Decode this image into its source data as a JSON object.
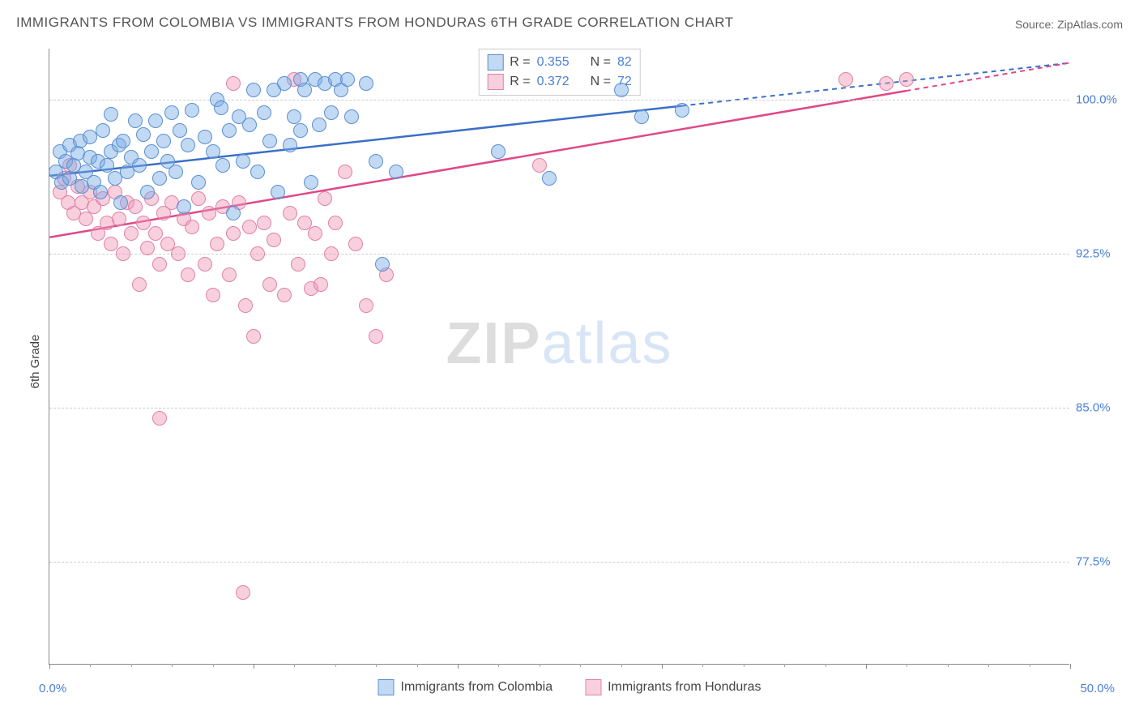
{
  "title": "IMMIGRANTS FROM COLOMBIA VS IMMIGRANTS FROM HONDURAS 6TH GRADE CORRELATION CHART",
  "source_label": "Source: ",
  "source_name": "ZipAtlas.com",
  "ylabel": "6th Grade",
  "watermark_a": "ZIP",
  "watermark_b": "atlas",
  "chart": {
    "type": "scatter",
    "xlim": [
      0,
      50
    ],
    "ylim": [
      72.5,
      102.5
    ],
    "x_start_label": "0.0%",
    "x_end_label": "50.0%",
    "yticks": [
      {
        "v": 100.0,
        "label": "100.0%"
      },
      {
        "v": 92.5,
        "label": "92.5%"
      },
      {
        "v": 85.0,
        "label": "85.0%"
      },
      {
        "v": 77.5,
        "label": "77.5%"
      }
    ],
    "x_major_ticks": [
      0,
      10,
      20,
      30,
      40,
      50
    ],
    "x_minor_ticks": [
      2,
      4,
      6,
      8,
      12,
      14,
      16,
      18,
      22,
      24,
      26,
      28,
      32,
      34,
      36,
      38,
      42,
      44,
      46,
      48
    ],
    "grid_color": "#cccccc",
    "background_color": "#ffffff",
    "marker_radius": 9,
    "series": [
      {
        "name": "Immigrants from Colombia",
        "color_fill": "rgba(120,170,230,0.45)",
        "color_stroke": "#5a8fd0",
        "r_label": "R = ",
        "r_value": "0.355",
        "n_label": "N = ",
        "n_value": "82",
        "trend": {
          "x1": 0,
          "y1": 96.3,
          "x2": 50,
          "y2": 101.8,
          "dash_from_x": 31
        },
        "trend_color": "#3a6fc8",
        "points": [
          [
            0.3,
            96.5
          ],
          [
            0.5,
            97.5
          ],
          [
            0.6,
            96.0
          ],
          [
            0.8,
            97.0
          ],
          [
            1.0,
            97.8
          ],
          [
            1.0,
            96.2
          ],
          [
            1.2,
            96.8
          ],
          [
            1.4,
            97.4
          ],
          [
            1.5,
            98.0
          ],
          [
            1.6,
            95.8
          ],
          [
            1.8,
            96.5
          ],
          [
            2.0,
            97.2
          ],
          [
            2.0,
            98.2
          ],
          [
            2.2,
            96.0
          ],
          [
            2.4,
            97.0
          ],
          [
            2.5,
            95.5
          ],
          [
            2.6,
            98.5
          ],
          [
            2.8,
            96.8
          ],
          [
            3.0,
            97.5
          ],
          [
            3.0,
            99.3
          ],
          [
            3.2,
            96.2
          ],
          [
            3.4,
            97.8
          ],
          [
            3.5,
            95.0
          ],
          [
            3.6,
            98.0
          ],
          [
            3.8,
            96.5
          ],
          [
            4.0,
            97.2
          ],
          [
            4.2,
            99.0
          ],
          [
            4.4,
            96.8
          ],
          [
            4.6,
            98.3
          ],
          [
            4.8,
            95.5
          ],
          [
            5.0,
            97.5
          ],
          [
            5.2,
            99.0
          ],
          [
            5.4,
            96.2
          ],
          [
            5.6,
            98.0
          ],
          [
            5.8,
            97.0
          ],
          [
            6.0,
            99.4
          ],
          [
            6.2,
            96.5
          ],
          [
            6.4,
            98.5
          ],
          [
            6.6,
            94.8
          ],
          [
            6.8,
            97.8
          ],
          [
            7.0,
            99.5
          ],
          [
            7.3,
            96.0
          ],
          [
            7.6,
            98.2
          ],
          [
            8.0,
            97.5
          ],
          [
            8.2,
            100.0
          ],
          [
            8.4,
            99.6
          ],
          [
            8.5,
            96.8
          ],
          [
            8.8,
            98.5
          ],
          [
            9.0,
            94.5
          ],
          [
            9.3,
            99.2
          ],
          [
            9.5,
            97.0
          ],
          [
            9.8,
            98.8
          ],
          [
            10.0,
            100.5
          ],
          [
            10.2,
            96.5
          ],
          [
            10.5,
            99.4
          ],
          [
            10.8,
            98.0
          ],
          [
            11.0,
            100.5
          ],
          [
            11.2,
            95.5
          ],
          [
            11.5,
            100.8
          ],
          [
            11.8,
            97.8
          ],
          [
            12.0,
            99.2
          ],
          [
            12.3,
            101.0
          ],
          [
            12.3,
            98.5
          ],
          [
            12.5,
            100.5
          ],
          [
            12.8,
            96.0
          ],
          [
            13.0,
            101.0
          ],
          [
            13.2,
            98.8
          ],
          [
            13.5,
            100.8
          ],
          [
            13.8,
            99.4
          ],
          [
            14.0,
            101.0
          ],
          [
            14.3,
            100.5
          ],
          [
            14.6,
            101.0
          ],
          [
            14.8,
            99.2
          ],
          [
            15.5,
            100.8
          ],
          [
            16.0,
            97.0
          ],
          [
            16.3,
            92.0
          ],
          [
            17.0,
            96.5
          ],
          [
            22.0,
            97.5
          ],
          [
            24.5,
            96.2
          ],
          [
            28.0,
            100.5
          ],
          [
            29.0,
            99.2
          ],
          [
            31.0,
            99.5
          ]
        ]
      },
      {
        "name": "Immigrants from Honduras",
        "color_fill": "rgba(240,150,180,0.45)",
        "color_stroke": "#e080a8",
        "r_label": "R = ",
        "r_value": "0.372",
        "n_label": "N = ",
        "n_value": "72",
        "trend": {
          "x1": 0,
          "y1": 93.3,
          "x2": 50,
          "y2": 101.8,
          "dash_from_x": 42
        },
        "trend_color": "#e04888",
        "points": [
          [
            0.5,
            95.5
          ],
          [
            0.7,
            96.2
          ],
          [
            0.9,
            95.0
          ],
          [
            1.0,
            96.8
          ],
          [
            1.2,
            94.5
          ],
          [
            1.4,
            95.8
          ],
          [
            1.6,
            95.0
          ],
          [
            1.8,
            94.2
          ],
          [
            2.0,
            95.5
          ],
          [
            2.2,
            94.8
          ],
          [
            2.4,
            93.5
          ],
          [
            2.6,
            95.2
          ],
          [
            2.8,
            94.0
          ],
          [
            3.0,
            93.0
          ],
          [
            3.2,
            95.5
          ],
          [
            3.4,
            94.2
          ],
          [
            3.6,
            92.5
          ],
          [
            3.8,
            95.0
          ],
          [
            4.0,
            93.5
          ],
          [
            4.2,
            94.8
          ],
          [
            4.4,
            91.0
          ],
          [
            4.6,
            94.0
          ],
          [
            4.8,
            92.8
          ],
          [
            5.0,
            95.2
          ],
          [
            5.2,
            93.5
          ],
          [
            5.4,
            92.0
          ],
          [
            5.4,
            84.5
          ],
          [
            5.6,
            94.5
          ],
          [
            5.8,
            93.0
          ],
          [
            6.0,
            95.0
          ],
          [
            6.3,
            92.5
          ],
          [
            6.6,
            94.2
          ],
          [
            6.8,
            91.5
          ],
          [
            7.0,
            93.8
          ],
          [
            7.3,
            95.2
          ],
          [
            7.6,
            92.0
          ],
          [
            7.8,
            94.5
          ],
          [
            8.0,
            90.5
          ],
          [
            8.2,
            93.0
          ],
          [
            8.5,
            94.8
          ],
          [
            8.8,
            91.5
          ],
          [
            9.0,
            93.5
          ],
          [
            9.3,
            95.0
          ],
          [
            9.5,
            76.0
          ],
          [
            9.6,
            90.0
          ],
          [
            9.8,
            93.8
          ],
          [
            10.0,
            88.5
          ],
          [
            10.2,
            92.5
          ],
          [
            10.5,
            94.0
          ],
          [
            10.8,
            91.0
          ],
          [
            11.0,
            93.2
          ],
          [
            11.5,
            90.5
          ],
          [
            11.8,
            94.5
          ],
          [
            12.0,
            101.0
          ],
          [
            12.2,
            92.0
          ],
          [
            12.5,
            94.0
          ],
          [
            12.8,
            90.8
          ],
          [
            13.0,
            93.5
          ],
          [
            13.3,
            91.0
          ],
          [
            13.5,
            95.2
          ],
          [
            13.8,
            92.5
          ],
          [
            14.0,
            94.0
          ],
          [
            14.5,
            96.5
          ],
          [
            15.0,
            93.0
          ],
          [
            15.5,
            90.0
          ],
          [
            16.0,
            88.5
          ],
          [
            16.5,
            91.5
          ],
          [
            24.0,
            96.8
          ],
          [
            39.0,
            101.0
          ],
          [
            41.0,
            100.8
          ],
          [
            42.0,
            101.0
          ],
          [
            9.0,
            100.8
          ]
        ]
      }
    ]
  }
}
